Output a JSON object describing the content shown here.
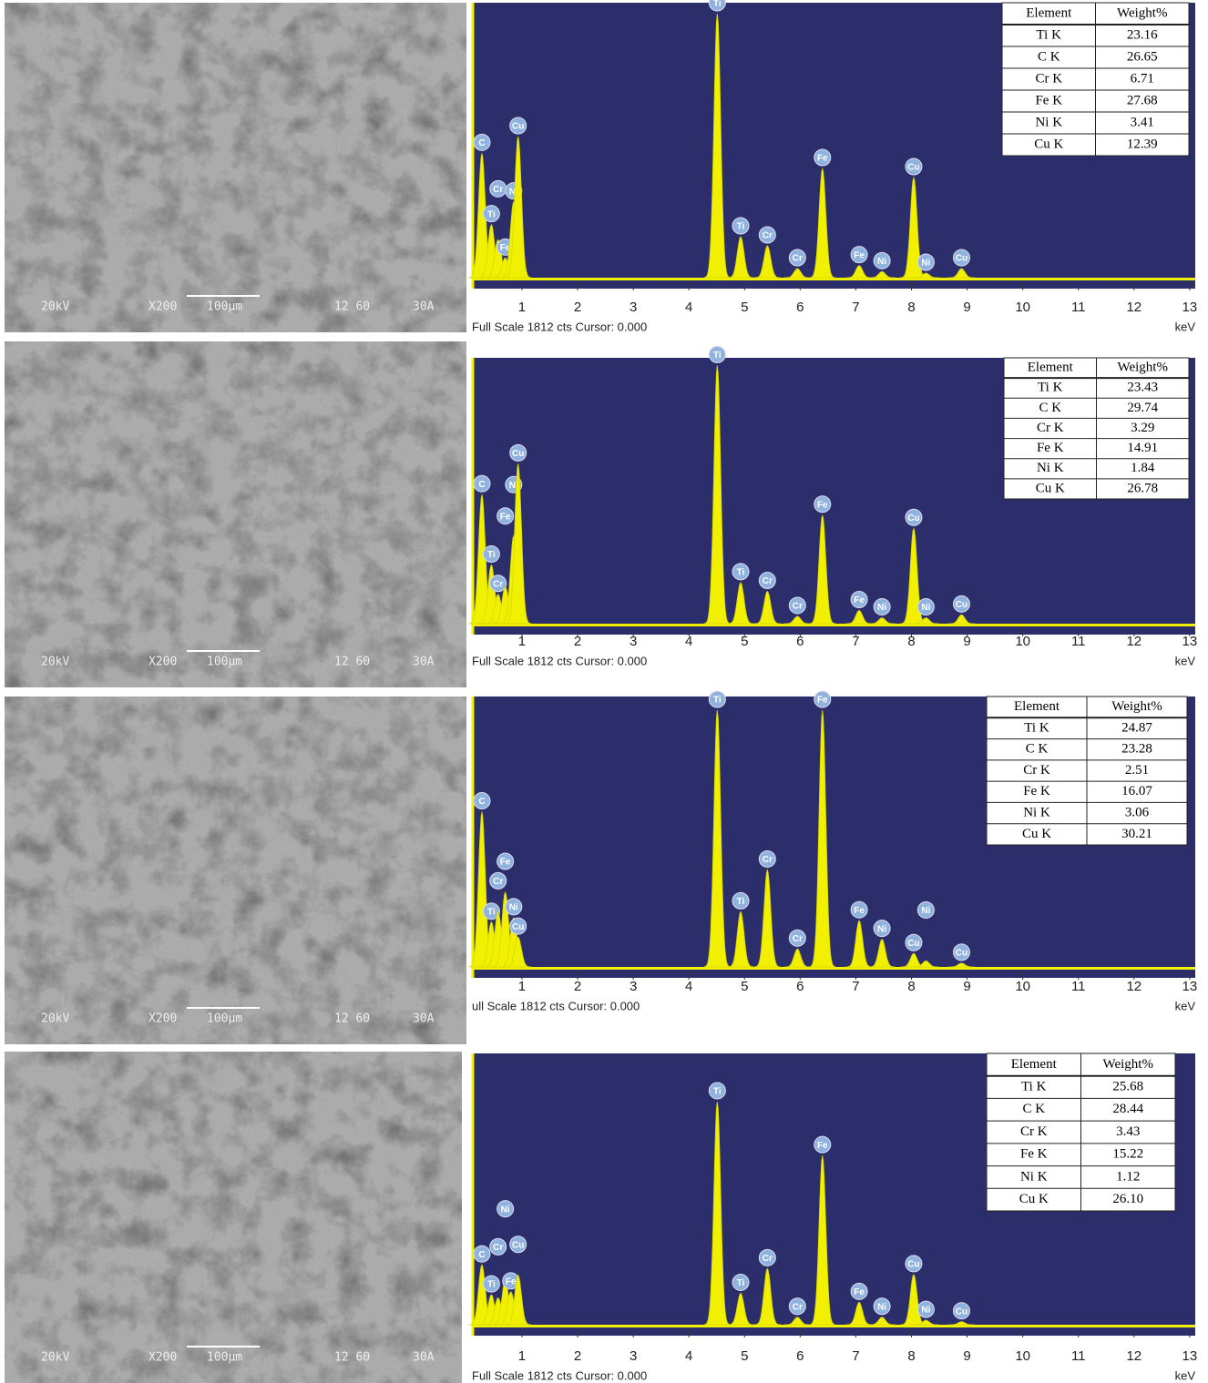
{
  "rows": [
    {
      "sem": {
        "labels": [
          "20kV",
          "X200",
          "100µm",
          "12 60",
          "30A"
        ]
      },
      "spectrum": {
        "type": "spectrum",
        "xlim": [
          0.1,
          13.1
        ],
        "ylim": [
          0,
          1812
        ],
        "xticks": [
          1,
          2,
          3,
          4,
          5,
          6,
          7,
          8,
          9,
          10,
          11,
          12,
          13
        ],
        "xlabel": "keV",
        "footer": "Full Scale 1812 cts Cursor: 0.000",
        "peaks": [
          {
            "label": "C",
            "x": 0.28,
            "value": 820
          },
          {
            "label": "Ti",
            "x": 0.45,
            "value": 350
          },
          {
            "label": "Cr",
            "x": 0.57,
            "value": 250
          },
          {
            "label": "Fe",
            "x": 0.7,
            "value": 130
          },
          {
            "label": "Ni",
            "x": 0.85,
            "value": 500
          },
          {
            "label": "Cu",
            "x": 0.93,
            "value": 930
          },
          {
            "label": "Ti",
            "x": 4.51,
            "value": 1740
          },
          {
            "label": "Ti",
            "x": 4.93,
            "value": 270
          },
          {
            "label": "Cr",
            "x": 5.41,
            "value": 210
          },
          {
            "label": "Cr",
            "x": 5.95,
            "value": 60
          },
          {
            "label": "Fe",
            "x": 6.4,
            "value": 720
          },
          {
            "label": "Fe",
            "x": 7.06,
            "value": 80
          },
          {
            "label": "Ni",
            "x": 7.47,
            "value": 40
          },
          {
            "label": "Cu",
            "x": 8.04,
            "value": 660
          },
          {
            "label": "Ni",
            "x": 8.26,
            "value": 30
          },
          {
            "label": "Cu",
            "x": 8.9,
            "value": 60
          }
        ],
        "table": {
          "header": [
            "Element",
            "Weight%"
          ],
          "rows": [
            [
              "Ti K",
              "23.16"
            ],
            [
              "C K",
              "26.65"
            ],
            [
              "Cr K",
              "6.71"
            ],
            [
              "Fe K",
              "27.68"
            ],
            [
              "Ni K",
              "3.41"
            ],
            [
              "Cu K",
              "12.39"
            ]
          ]
        }
      }
    },
    {
      "sem": {
        "labels": [
          "20kV",
          "X200",
          "100µm",
          "12 60",
          "30A"
        ]
      },
      "spectrum": {
        "type": "spectrum",
        "xlim": [
          0.1,
          13.1
        ],
        "ylim": [
          0,
          1812
        ],
        "xticks": [
          1,
          2,
          3,
          4,
          5,
          6,
          7,
          8,
          9,
          10,
          11,
          12,
          13
        ],
        "xlabel": "keV",
        "footer": "Full Scale 1812 cts Cursor: 0.000",
        "peaks": [
          {
            "label": "C",
            "x": 0.28,
            "value": 880
          },
          {
            "label": "Ti",
            "x": 0.45,
            "value": 400
          },
          {
            "label": "Cr",
            "x": 0.57,
            "value": 200
          },
          {
            "label": "Fe",
            "x": 0.7,
            "value": 250
          },
          {
            "label": "Ni",
            "x": 0.85,
            "value": 600
          },
          {
            "label": "Cu",
            "x": 0.93,
            "value": 1090
          },
          {
            "label": "Ti",
            "x": 4.51,
            "value": 1760
          },
          {
            "label": "Ti",
            "x": 4.93,
            "value": 280
          },
          {
            "label": "Cr",
            "x": 5.41,
            "value": 220
          },
          {
            "label": "Cr",
            "x": 5.95,
            "value": 50
          },
          {
            "label": "Fe",
            "x": 6.4,
            "value": 740
          },
          {
            "label": "Fe",
            "x": 7.06,
            "value": 90
          },
          {
            "label": "Ni",
            "x": 7.47,
            "value": 40
          },
          {
            "label": "Cu",
            "x": 8.04,
            "value": 650
          },
          {
            "label": "Ni",
            "x": 8.26,
            "value": 40
          },
          {
            "label": "Cu",
            "x": 8.9,
            "value": 60
          }
        ],
        "table": {
          "header": [
            "Element",
            "Weight%"
          ],
          "rows": [
            [
              "Ti K",
              "23.43"
            ],
            [
              "C K",
              "29.74"
            ],
            [
              "Cr K",
              "3.29"
            ],
            [
              "Fe K",
              "14.91"
            ],
            [
              "Ni K",
              "1.84"
            ],
            [
              "Cu K",
              "26.78"
            ]
          ]
        }
      }
    },
    {
      "sem": {
        "labels": [
          "20kV",
          "X200",
          "100µm",
          "12 60",
          "30A"
        ]
      },
      "spectrum": {
        "type": "spectrum",
        "xlim": [
          0.1,
          13.1
        ],
        "ylim": [
          0,
          1812
        ],
        "xticks": [
          1,
          2,
          3,
          4,
          5,
          6,
          7,
          8,
          9,
          10,
          11,
          12,
          13
        ],
        "xlabel": "keV",
        "footer": "ull Scale 1812 cts Cursor: 0.000",
        "peaks": [
          {
            "label": "C",
            "x": 0.28,
            "value": 1040
          },
          {
            "label": "Ti",
            "x": 0.45,
            "value": 300
          },
          {
            "label": "Cr",
            "x": 0.57,
            "value": 370
          },
          {
            "label": "Fe",
            "x": 0.7,
            "value": 500
          },
          {
            "label": "Ni",
            "x": 0.85,
            "value": 330
          },
          {
            "label": "Cu",
            "x": 0.93,
            "value": 200
          },
          {
            "label": "Ti",
            "x": 4.51,
            "value": 1720
          },
          {
            "label": "Ti",
            "x": 4.93,
            "value": 370
          },
          {
            "label": "Cr",
            "x": 5.41,
            "value": 650
          },
          {
            "label": "Cr",
            "x": 5.95,
            "value": 120
          },
          {
            "label": "Fe",
            "x": 6.4,
            "value": 1720
          },
          {
            "label": "Fe",
            "x": 7.06,
            "value": 310
          },
          {
            "label": "Ni",
            "x": 7.47,
            "value": 185
          },
          {
            "label": "Cu",
            "x": 8.04,
            "value": 90
          },
          {
            "label": "Ni",
            "x": 8.26,
            "value": 40
          },
          {
            "label": "Cu",
            "x": 8.9,
            "value": 25
          }
        ],
        "table": {
          "header": [
            "Element",
            "Weight%"
          ],
          "rows": [
            [
              "Ti K",
              "24.87"
            ],
            [
              "C K",
              "23.28"
            ],
            [
              "Cr K",
              "2.51"
            ],
            [
              "Fe K",
              "16.07"
            ],
            [
              "Ni K",
              "3.06"
            ],
            [
              "Cu K",
              "30.21"
            ]
          ]
        }
      }
    },
    {
      "sem": {
        "labels": [
          "20kV",
          "X200",
          "100µm",
          "12 60",
          "30A"
        ]
      },
      "spectrum": {
        "type": "spectrum",
        "xlim": [
          0.1,
          13.1
        ],
        "ylim": [
          0,
          1812
        ],
        "xticks": [
          1,
          2,
          3,
          4,
          5,
          6,
          7,
          8,
          9,
          10,
          11,
          12,
          13
        ],
        "xlabel": "keV",
        "footer": "Full Scale 1812 cts Cursor: 0.000",
        "peaks": [
          {
            "label": "C",
            "x": 0.28,
            "value": 400
          },
          {
            "label": "Ti",
            "x": 0.45,
            "value": 200
          },
          {
            "label": "Cr",
            "x": 0.57,
            "value": 180
          },
          {
            "label": "Ni",
            "x": 0.7,
            "value": 300
          },
          {
            "label": "Fe",
            "x": 0.8,
            "value": 220
          },
          {
            "label": "Cu",
            "x": 0.93,
            "value": 330
          },
          {
            "label": "Ti",
            "x": 4.51,
            "value": 1490
          },
          {
            "label": "Ti",
            "x": 4.93,
            "value": 210
          },
          {
            "label": "Cr",
            "x": 5.41,
            "value": 375
          },
          {
            "label": "Cr",
            "x": 5.95,
            "value": 50
          },
          {
            "label": "Fe",
            "x": 6.4,
            "value": 1130
          },
          {
            "label": "Fe",
            "x": 7.06,
            "value": 150
          },
          {
            "label": "Ni",
            "x": 7.47,
            "value": 50
          },
          {
            "label": "Cu",
            "x": 8.04,
            "value": 335
          },
          {
            "label": "Ni",
            "x": 8.26,
            "value": 30
          },
          {
            "label": "Cu",
            "x": 8.9,
            "value": 20
          }
        ],
        "table": {
          "header": [
            "Element",
            "Weight%"
          ],
          "rows": [
            [
              "Ti K",
              "25.68"
            ],
            [
              "C K",
              "28.44"
            ],
            [
              "Cr K",
              "3.43"
            ],
            [
              "Fe K",
              "15.22"
            ],
            [
              "Ni K",
              "1.12"
            ],
            [
              "Cu K",
              "26.10"
            ]
          ]
        }
      }
    }
  ]
}
